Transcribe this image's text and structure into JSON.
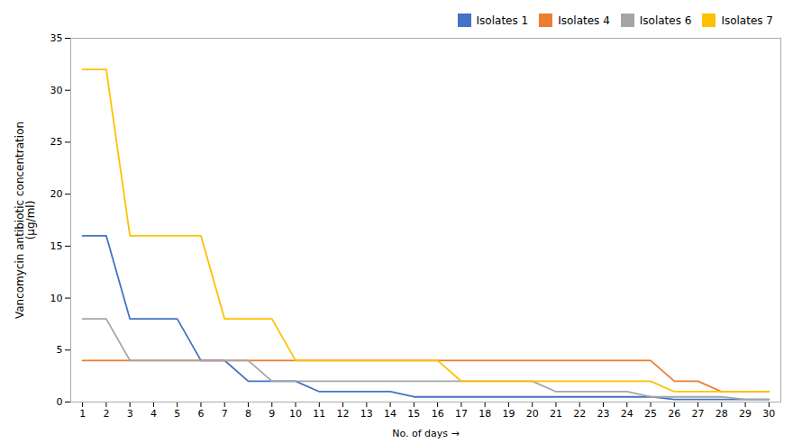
{
  "chart_data": {
    "type": "line",
    "x": [
      1,
      2,
      3,
      4,
      5,
      6,
      7,
      8,
      9,
      10,
      11,
      12,
      13,
      14,
      15,
      16,
      17,
      18,
      19,
      20,
      21,
      22,
      23,
      24,
      25,
      26,
      27,
      28,
      29,
      30
    ],
    "series": [
      {
        "name": "Isolates 1",
        "color": "#4472C4",
        "values": [
          16,
          16,
          8,
          8,
          8,
          4,
          4,
          2,
          2,
          2,
          1,
          1,
          1,
          1,
          0.5,
          0.5,
          0.5,
          0.5,
          0.5,
          0.5,
          0.5,
          0.5,
          0.5,
          0.5,
          0.5,
          0.25,
          0.25,
          0.25,
          0.25,
          0.25
        ]
      },
      {
        "name": "Isolates 4",
        "color": "#ED7D31",
        "values": [
          4,
          4,
          4,
          4,
          4,
          4,
          4,
          4,
          4,
          4,
          4,
          4,
          4,
          4,
          4,
          4,
          4,
          4,
          4,
          4,
          4,
          4,
          4,
          4,
          4,
          2,
          2,
          1,
          1,
          1
        ]
      },
      {
        "name": "Isolates 6",
        "color": "#A5A5A5",
        "values": [
          8,
          8,
          4,
          4,
          4,
          4,
          4,
          4,
          2,
          2,
          2,
          2,
          2,
          2,
          2,
          2,
          2,
          2,
          2,
          2,
          1,
          1,
          1,
          1,
          0.5,
          0.5,
          0.5,
          0.5,
          0.25,
          0.25
        ]
      },
      {
        "name": "Isolates 7",
        "color": "#FFC000",
        "values": [
          32,
          32,
          16,
          16,
          16,
          16,
          8,
          8,
          8,
          4,
          4,
          4,
          4,
          4,
          4,
          4,
          2,
          2,
          2,
          2,
          2,
          2,
          2,
          2,
          2,
          1,
          1,
          1,
          1,
          1
        ]
      }
    ],
    "xlabel": "No. of days",
    "ylabel": "Vancomycin antibiotic concentration\n(µg/ml)",
    "xlim": [
      0.5,
      30.5
    ],
    "xticks": [
      1,
      2,
      3,
      4,
      5,
      6,
      7,
      8,
      9,
      10,
      11,
      12,
      13,
      14,
      15,
      16,
      17,
      18,
      19,
      20,
      21,
      22,
      23,
      24,
      25,
      26,
      27,
      28,
      29,
      30
    ],
    "ylim": [
      0,
      35
    ],
    "yticks": [
      0,
      5,
      10,
      15,
      20,
      25,
      30,
      35
    ],
    "grid": false,
    "legend": "upper right"
  }
}
